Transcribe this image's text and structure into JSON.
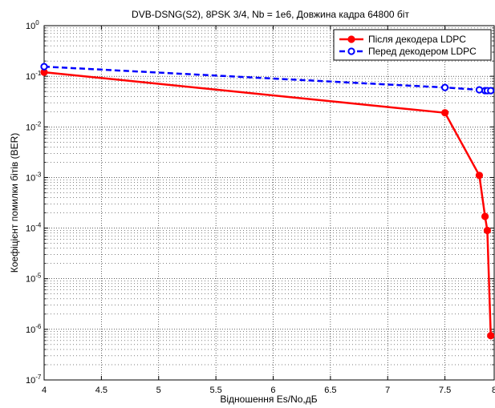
{
  "chart_data": {
    "type": "line",
    "title": "DVB-DSNG(S2), 8PSK 3/4, Nb = 1e6, Довжина кадра 64800 біт",
    "xlabel": "Відношення Es/No,дБ",
    "ylabel": "Коефіцієнт помилки бітів (BER)",
    "xlim": [
      4,
      7.93
    ],
    "ylim": [
      1e-07,
      1
    ],
    "yscale": "log",
    "grid": true,
    "legend_position": "top-right",
    "x_ticks": [
      "4",
      "4.5",
      "5",
      "5.5",
      "6",
      "6.5",
      "7",
      "7.5",
      "8"
    ],
    "y_ticks": [
      {
        "base": "10",
        "exp": "0"
      },
      {
        "base": "10",
        "exp": "-1"
      },
      {
        "base": "10",
        "exp": "-2"
      },
      {
        "base": "10",
        "exp": "-3"
      },
      {
        "base": "10",
        "exp": "-4"
      },
      {
        "base": "10",
        "exp": "-5"
      },
      {
        "base": "10",
        "exp": "-6"
      },
      {
        "base": "10",
        "exp": "-7"
      }
    ],
    "series": [
      {
        "name": "Після декодера LDPC",
        "color": "#ff0000",
        "style": "solid",
        "marker": "filled-circle",
        "x": [
          4.0,
          7.5,
          7.8,
          7.85,
          7.87,
          7.9
        ],
        "y": [
          0.12,
          0.019,
          0.0011,
          0.00017,
          9e-05,
          7.5e-07
        ]
      },
      {
        "name": "Перед декодером LDPC",
        "color": "#0000ff",
        "style": "dashed",
        "marker": "open-circle",
        "x": [
          4.0,
          7.5,
          7.8,
          7.85,
          7.87,
          7.9
        ],
        "y": [
          0.155,
          0.06,
          0.054,
          0.052,
          0.052,
          0.052
        ]
      }
    ]
  }
}
